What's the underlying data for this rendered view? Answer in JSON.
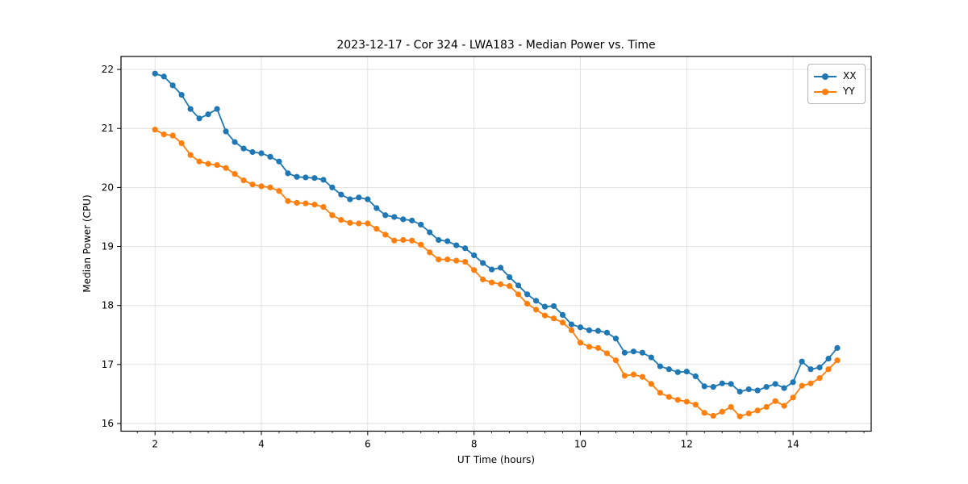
{
  "chart_data": {
    "type": "line",
    "title": "2023-12-17 - Cor 324 - LWA183 - Median Power vs. Time",
    "xlabel": "UT Time (hours)",
    "ylabel": "Median Power (CPU)",
    "xlim": [
      1.36,
      15.47
    ],
    "ylim": [
      15.87,
      22.22
    ],
    "x_ticks": [
      2,
      4,
      6,
      8,
      10,
      12,
      14
    ],
    "y_ticks": [
      16,
      17,
      18,
      19,
      20,
      21,
      22
    ],
    "x_minor_step": 0.33333,
    "grid": true,
    "grid_color": "#dedede",
    "legend_position": "upper right",
    "x": [
      2.0,
      2.167,
      2.333,
      2.5,
      2.667,
      2.833,
      3.0,
      3.167,
      3.333,
      3.5,
      3.667,
      3.833,
      4.0,
      4.167,
      4.333,
      4.5,
      4.667,
      4.833,
      5.0,
      5.167,
      5.333,
      5.5,
      5.667,
      5.833,
      6.0,
      6.167,
      6.333,
      6.5,
      6.667,
      6.833,
      7.0,
      7.167,
      7.333,
      7.5,
      7.667,
      7.833,
      8.0,
      8.167,
      8.333,
      8.5,
      8.667,
      8.833,
      9.0,
      9.167,
      9.333,
      9.5,
      9.667,
      9.833,
      10.0,
      10.167,
      10.333,
      10.5,
      10.667,
      10.833,
      11.0,
      11.167,
      11.333,
      11.5,
      11.667,
      11.833,
      12.0,
      12.167,
      12.333,
      12.5,
      12.667,
      12.833,
      13.0,
      13.167,
      13.333,
      13.5,
      13.667,
      13.833,
      14.0,
      14.167,
      14.333,
      14.5,
      14.667,
      14.833
    ],
    "series": [
      {
        "name": "XX",
        "color": "#1f77b4",
        "values": [
          21.93,
          21.88,
          21.73,
          21.57,
          21.33,
          21.17,
          21.24,
          21.33,
          20.95,
          20.77,
          20.66,
          20.6,
          20.58,
          20.52,
          20.44,
          20.24,
          20.18,
          20.17,
          20.16,
          20.13,
          20.0,
          19.88,
          19.8,
          19.83,
          19.8,
          19.65,
          19.53,
          19.5,
          19.46,
          19.44,
          19.37,
          19.24,
          19.11,
          19.09,
          19.02,
          18.97,
          18.85,
          18.72,
          18.61,
          18.64,
          18.48,
          18.34,
          18.19,
          18.08,
          17.98,
          17.99,
          17.84,
          17.68,
          17.63,
          17.58,
          17.57,
          17.54,
          17.44,
          17.2,
          17.22,
          17.2,
          17.12,
          16.97,
          16.92,
          16.87,
          16.88,
          16.8,
          16.63,
          16.62,
          16.68,
          16.67,
          16.54,
          16.58,
          16.56,
          16.62,
          16.67,
          16.6,
          16.7,
          17.05,
          16.92,
          16.95,
          17.1,
          17.28
        ]
      },
      {
        "name": "YY",
        "color": "#ff7f0e",
        "values": [
          20.98,
          20.9,
          20.88,
          20.75,
          20.55,
          20.44,
          20.4,
          20.38,
          20.33,
          20.23,
          20.12,
          20.05,
          20.02,
          20.0,
          19.94,
          19.77,
          19.74,
          19.73,
          19.71,
          19.67,
          19.53,
          19.45,
          19.4,
          19.39,
          19.39,
          19.3,
          19.2,
          19.1,
          19.11,
          19.1,
          19.03,
          18.9,
          18.78,
          18.78,
          18.76,
          18.74,
          18.6,
          18.44,
          18.39,
          18.36,
          18.33,
          18.19,
          18.03,
          17.93,
          17.83,
          17.78,
          17.71,
          17.58,
          17.37,
          17.3,
          17.28,
          17.19,
          17.07,
          16.81,
          16.83,
          16.79,
          16.67,
          16.52,
          16.45,
          16.4,
          16.37,
          16.32,
          16.18,
          16.13,
          16.2,
          16.28,
          16.12,
          16.17,
          16.22,
          16.28,
          16.38,
          16.3,
          16.44,
          16.64,
          16.68,
          16.77,
          16.92,
          17.07
        ]
      }
    ]
  },
  "legend": {
    "entries": [
      {
        "label": "XX",
        "color": "#1f77b4"
      },
      {
        "label": "YY",
        "color": "#ff7f0e"
      }
    ]
  }
}
